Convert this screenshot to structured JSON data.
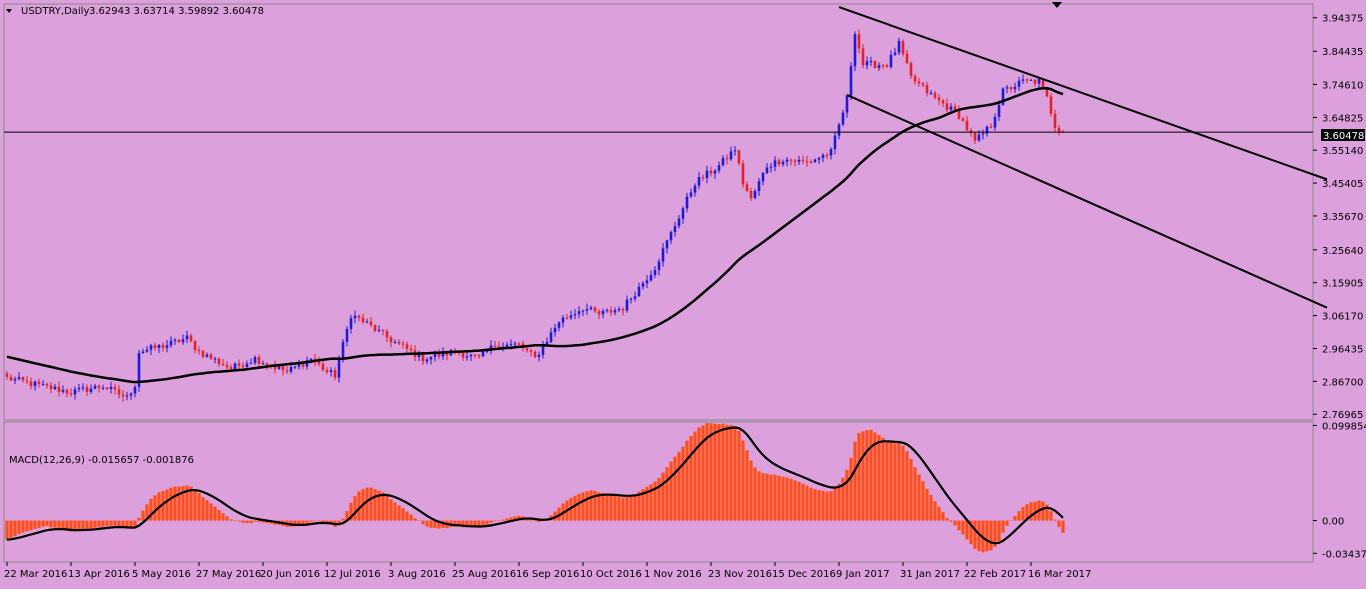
{
  "colors": {
    "background": "#dca0dc",
    "bull_candle": "#1c1cd6",
    "bear_candle": "#e52222",
    "ma_line": "#000000",
    "macd_histogram": "#ff4d14",
    "macd_signal": "#000000",
    "price_line": "#000000",
    "price_tag_bg": "#000000",
    "price_tag_text": "#ffffff"
  },
  "chart_data": [
    {
      "type": "line",
      "title": "USDTRY,Daily",
      "ohlc_text": "3.62943 3.63714 3.59892 3.60478",
      "current_price": "3.60478",
      "current_price_value": 3.60478,
      "ylim": [
        2.7526,
        3.9842
      ],
      "y_ticks": [
        "3.94375",
        "3.84435",
        "3.74610",
        "3.64825",
        "3.55140",
        "3.45405",
        "3.35670",
        "3.25640",
        "3.15905",
        "3.06170",
        "2.96435",
        "2.86700",
        "2.76965"
      ],
      "y_tick_values": [
        3.94375,
        3.84435,
        3.7461,
        3.64825,
        3.5514,
        3.45405,
        3.3567,
        3.2564,
        3.15905,
        3.0617,
        2.96435,
        2.867,
        2.76965
      ],
      "x_ticks": [
        "22 Mar 2016",
        "13 Apr 2016",
        "5 May 2016",
        "27 May 2016",
        "20 Jun 2016",
        "12 Jul 2016",
        "3 Aug 2016",
        "25 Aug 2016",
        "16 Sep 2016",
        "10 Oct 2016",
        "1 Nov 2016",
        "23 Nov 2016",
        "15 Dec 2016",
        "9 Jan 2017",
        "31 Jan 2017",
        "22 Feb 2017",
        "16 Mar 2017"
      ],
      "x_tick_index": [
        0,
        16,
        32,
        48,
        64,
        80,
        96,
        112,
        128,
        144,
        160,
        176,
        192,
        208,
        224,
        240,
        256
      ],
      "n_bars": 265,
      "price_anchors": [
        [
          0,
          2.877
        ],
        [
          8,
          2.855
        ],
        [
          16,
          2.835
        ],
        [
          24,
          2.853
        ],
        [
          30,
          2.818
        ],
        [
          32,
          2.858
        ],
        [
          33,
          2.955
        ],
        [
          40,
          2.975
        ],
        [
          45,
          2.995
        ],
        [
          48,
          2.955
        ],
        [
          56,
          2.905
        ],
        [
          62,
          2.935
        ],
        [
          70,
          2.895
        ],
        [
          76,
          2.935
        ],
        [
          80,
          2.895
        ],
        [
          82,
          2.885
        ],
        [
          84,
          2.975
        ],
        [
          86,
          3.065
        ],
        [
          89,
          3.045
        ],
        [
          94,
          3.005
        ],
        [
          98,
          2.975
        ],
        [
          104,
          2.935
        ],
        [
          112,
          2.955
        ],
        [
          118,
          2.935
        ],
        [
          122,
          2.975
        ],
        [
          128,
          2.975
        ],
        [
          132,
          2.935
        ],
        [
          138,
          3.045
        ],
        [
          144,
          3.085
        ],
        [
          148,
          3.065
        ],
        [
          154,
          3.085
        ],
        [
          158,
          3.145
        ],
        [
          162,
          3.205
        ],
        [
          166,
          3.305
        ],
        [
          172,
          3.455
        ],
        [
          178,
          3.505
        ],
        [
          182,
          3.555
        ],
        [
          184,
          3.455
        ],
        [
          186,
          3.405
        ],
        [
          190,
          3.505
        ],
        [
          194,
          3.525
        ],
        [
          200,
          3.515
        ],
        [
          206,
          3.545
        ],
        [
          210,
          3.705
        ],
        [
          212,
          3.905
        ],
        [
          214,
          3.805
        ],
        [
          220,
          3.805
        ],
        [
          223,
          3.865
        ],
        [
          226,
          3.765
        ],
        [
          232,
          3.705
        ],
        [
          238,
          3.655
        ],
        [
          242,
          3.575
        ],
        [
          246,
          3.625
        ],
        [
          249,
          3.725
        ],
        [
          254,
          3.755
        ],
        [
          258,
          3.755
        ],
        [
          260,
          3.705
        ],
        [
          262,
          3.625
        ],
        [
          264,
          3.605
        ]
      ],
      "ma_period": 50,
      "ma_start": [
        2.94,
        2.9,
        2.87
      ],
      "trendlines": [
        {
          "x1": 208,
          "y1": 3.975,
          "x2": 330,
          "y2": 3.465
        },
        {
          "x1": 210,
          "y1": 3.715,
          "x2": 330,
          "y2": 3.085
        }
      ]
    },
    {
      "type": "area",
      "title": "MACD(12,26,9) -0.015657 -0.001876",
      "ylim": [
        -0.0435,
        0.1035
      ],
      "y_ticks": [
        "0.099854",
        "0.00",
        "-0.034377"
      ],
      "y_tick_values": [
        0.099854,
        0.0,
        -0.034377
      ],
      "series": [
        {
          "kind": "histogram",
          "values_rule": "EMA12 - EMA26 of close"
        },
        {
          "kind": "signal",
          "values_rule": "EMA9 of histogram"
        }
      ]
    }
  ]
}
